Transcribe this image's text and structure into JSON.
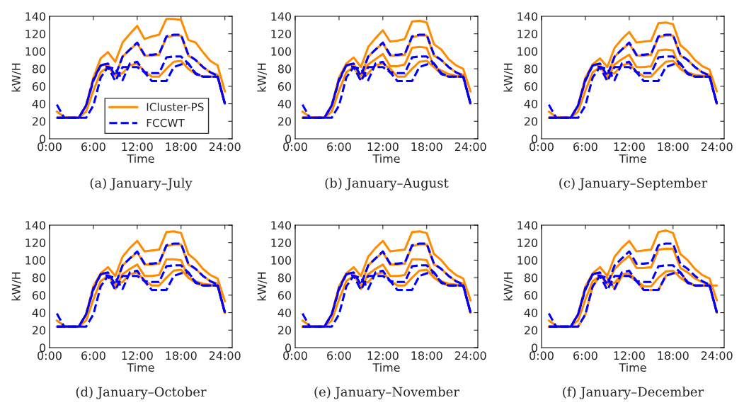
{
  "chart_data": [
    {
      "type": "line",
      "title": "(a) January–July",
      "xlabel": "Time",
      "ylabel": "kW/H",
      "x": [
        1,
        2,
        3,
        4,
        5,
        6,
        7,
        8,
        9,
        10,
        11,
        12,
        13,
        14,
        15,
        16,
        17,
        18,
        19,
        20,
        21,
        22,
        23,
        24
      ],
      "xlim": [
        0,
        25
      ],
      "xticks": [
        {
          "value": 0,
          "label": "0:00"
        },
        {
          "value": 6,
          "label": "6:00"
        },
        {
          "value": 12,
          "label": "12:00"
        },
        {
          "value": 18,
          "label": "18:00"
        },
        {
          "value": 24,
          "label": "24:00"
        }
      ],
      "ylim": [
        0,
        140
      ],
      "yticks": [
        0,
        20,
        40,
        60,
        80,
        100,
        120,
        140
      ],
      "legend": "bottom right",
      "series": [
        {
          "name": "ICluster-PS",
          "color": "#ff8c00",
          "line_style": "solid",
          "values": [
            24,
            24,
            24,
            24,
            38,
            70,
            92,
            99,
            88,
            110,
            120,
            129,
            114,
            117,
            119,
            137,
            137,
            136,
            113,
            110,
            99,
            89,
            84,
            54
          ]
        },
        {
          "color": "#ff8c00",
          "line_style": "solid",
          "values": [
            24,
            24,
            24,
            24,
            38,
            68,
            84,
            85,
            72,
            94,
            102,
            109,
            95,
            95,
            96,
            116,
            118,
            118,
            95,
            90,
            82,
            76,
            73,
            40
          ]
        },
        {
          "color": "#ff8c00",
          "line_style": "solid",
          "values": [
            31,
            25,
            24,
            24,
            31,
            55,
            76,
            82,
            72,
            75,
            84,
            86,
            77,
            71,
            71,
            80,
            88,
            89,
            80,
            74,
            71,
            71,
            71,
            40
          ]
        },
        {
          "name": "FCCWT",
          "color": "#0000ff",
          "line_style": "dashed",
          "values": [
            24,
            24,
            24,
            24,
            38,
            68,
            84,
            86,
            72,
            94,
            102,
            110,
            96,
            96,
            97,
            117,
            119,
            119,
            96,
            90,
            82,
            76,
            72,
            40
          ]
        },
        {
          "color": "#0000ff",
          "line_style": "dashed",
          "values": [
            39,
            24,
            24,
            24,
            38,
            66,
            84,
            82,
            80,
            67,
            86,
            88,
            76,
            75,
            75,
            93,
            94,
            94,
            86,
            74,
            71,
            71,
            71,
            40
          ]
        },
        {
          "color": "#0000ff",
          "line_style": "dashed",
          "values": [
            24,
            24,
            24,
            24,
            24,
            38,
            70,
            82,
            66,
            82,
            82,
            82,
            76,
            66,
            66,
            66,
            82,
            85,
            86,
            75,
            71,
            71,
            71,
            40
          ]
        }
      ]
    },
    {
      "type": "line",
      "title": "(b) January–August",
      "xlabel": "Time",
      "ylabel": "kW/H",
      "x": [
        1,
        2,
        3,
        4,
        5,
        6,
        7,
        8,
        9,
        10,
        11,
        12,
        13,
        14,
        15,
        16,
        17,
        18,
        19,
        20,
        21,
        22,
        23,
        24
      ],
      "xlim": [
        0,
        25
      ],
      "xticks": [
        {
          "value": 0,
          "label": "0:00"
        },
        {
          "value": 6,
          "label": "6:00"
        },
        {
          "value": 12,
          "label": "12:00"
        },
        {
          "value": 18,
          "label": "18:00"
        },
        {
          "value": 24,
          "label": "24:00"
        }
      ],
      "ylim": [
        0,
        140
      ],
      "yticks": [
        0,
        20,
        40,
        60,
        80,
        100,
        120,
        140
      ],
      "series": [
        {
          "color": "#ff8c00",
          "line_style": "solid",
          "values": [
            24,
            24,
            24,
            24,
            38,
            70,
            86,
            93,
            82,
            105,
            115,
            124,
            111,
            112,
            114,
            134,
            135,
            133,
            108,
            102,
            91,
            84,
            80,
            54
          ]
        },
        {
          "color": "#ff8c00",
          "line_style": "solid",
          "values": [
            24,
            24,
            24,
            24,
            38,
            68,
            84,
            85,
            72,
            94,
            102,
            109,
            95,
            95,
            96,
            116,
            118,
            118,
            95,
            90,
            82,
            76,
            73,
            40
          ]
        },
        {
          "color": "#ff8c00",
          "line_style": "solid",
          "values": [
            24,
            24,
            24,
            24,
            38,
            68,
            84,
            85,
            72,
            85,
            91,
            97,
            83,
            83,
            85,
            104,
            105,
            104,
            82,
            78,
            74,
            72,
            71,
            40
          ]
        },
        {
          "color": "#ff8c00",
          "line_style": "solid",
          "values": [
            31,
            25,
            24,
            24,
            31,
            55,
            76,
            82,
            68,
            75,
            84,
            86,
            80,
            71,
            71,
            80,
            88,
            89,
            82,
            74,
            71,
            71,
            71,
            40
          ]
        },
        {
          "color": "#0000ff",
          "line_style": "dashed",
          "values": [
            24,
            24,
            24,
            24,
            38,
            68,
            84,
            86,
            72,
            94,
            102,
            110,
            96,
            96,
            97,
            117,
            119,
            119,
            96,
            90,
            82,
            76,
            72,
            40
          ]
        },
        {
          "color": "#0000ff",
          "line_style": "dashed",
          "values": [
            39,
            24,
            24,
            24,
            38,
            66,
            84,
            82,
            80,
            67,
            86,
            88,
            76,
            75,
            75,
            93,
            94,
            94,
            86,
            74,
            71,
            71,
            71,
            40
          ]
        },
        {
          "color": "#0000ff",
          "line_style": "dashed",
          "values": [
            24,
            24,
            24,
            24,
            24,
            38,
            70,
            82,
            66,
            82,
            82,
            82,
            76,
            66,
            66,
            66,
            82,
            85,
            86,
            75,
            71,
            71,
            71,
            40
          ]
        }
      ]
    },
    {
      "type": "line",
      "title": "(c) January–September",
      "xlabel": "Time",
      "ylabel": "kW/H",
      "x": [
        1,
        2,
        3,
        4,
        5,
        6,
        7,
        8,
        9,
        10,
        11,
        12,
        13,
        14,
        15,
        16,
        17,
        18,
        19,
        20,
        21,
        22,
        23,
        24
      ],
      "xlim": [
        0,
        25
      ],
      "xticks": [
        {
          "value": 0,
          "label": "0:00"
        },
        {
          "value": 6,
          "label": "6:00"
        },
        {
          "value": 12,
          "label": "12:00"
        },
        {
          "value": 18,
          "label": "18:00"
        },
        {
          "value": 24,
          "label": "24:00"
        }
      ],
      "ylim": [
        0,
        140
      ],
      "yticks": [
        0,
        20,
        40,
        60,
        80,
        100,
        120,
        140
      ],
      "series": [
        {
          "color": "#ff8c00",
          "line_style": "solid",
          "values": [
            24,
            24,
            24,
            24,
            38,
            70,
            85,
            92,
            82,
            104,
            114,
            122,
            110,
            111,
            112,
            132,
            133,
            131,
            107,
            100,
            90,
            83,
            79,
            54
          ]
        },
        {
          "color": "#ff8c00",
          "line_style": "solid",
          "values": [
            24,
            24,
            24,
            24,
            38,
            68,
            84,
            85,
            72,
            94,
            102,
            109,
            95,
            95,
            96,
            116,
            118,
            118,
            95,
            90,
            82,
            76,
            73,
            40
          ]
        },
        {
          "color": "#ff8c00",
          "line_style": "solid",
          "values": [
            24,
            24,
            24,
            24,
            38,
            68,
            84,
            85,
            68,
            85,
            91,
            96,
            82,
            82,
            83,
            101,
            102,
            101,
            80,
            76,
            73,
            72,
            71,
            40
          ]
        },
        {
          "color": "#ff8c00",
          "line_style": "solid",
          "values": [
            31,
            25,
            24,
            24,
            31,
            55,
            76,
            82,
            72,
            75,
            84,
            86,
            77,
            71,
            71,
            80,
            88,
            89,
            80,
            74,
            71,
            71,
            71,
            40
          ]
        },
        {
          "color": "#0000ff",
          "line_style": "dashed",
          "values": [
            24,
            24,
            24,
            24,
            38,
            68,
            84,
            86,
            72,
            94,
            102,
            110,
            96,
            96,
            97,
            117,
            119,
            119,
            96,
            90,
            82,
            76,
            72,
            40
          ]
        },
        {
          "color": "#0000ff",
          "line_style": "dashed",
          "values": [
            39,
            24,
            24,
            24,
            38,
            66,
            84,
            82,
            80,
            67,
            86,
            88,
            76,
            75,
            75,
            93,
            94,
            94,
            86,
            74,
            71,
            71,
            71,
            40
          ]
        },
        {
          "color": "#0000ff",
          "line_style": "dashed",
          "values": [
            24,
            24,
            24,
            24,
            24,
            38,
            70,
            82,
            66,
            82,
            82,
            82,
            76,
            66,
            66,
            66,
            82,
            85,
            86,
            75,
            71,
            71,
            71,
            40
          ]
        }
      ]
    },
    {
      "type": "line",
      "title": "(d) January–October",
      "xlabel": "Time",
      "ylabel": "kW/H",
      "x": [
        1,
        2,
        3,
        4,
        5,
        6,
        7,
        8,
        9,
        10,
        11,
        12,
        13,
        14,
        15,
        16,
        17,
        18,
        19,
        20,
        21,
        22,
        23,
        24
      ],
      "xlim": [
        0,
        25
      ],
      "xticks": [
        {
          "value": 0,
          "label": "0:00"
        },
        {
          "value": 6,
          "label": "6:00"
        },
        {
          "value": 12,
          "label": "12:00"
        },
        {
          "value": 18,
          "label": "18:00"
        },
        {
          "value": 24,
          "label": "24:00"
        }
      ],
      "ylim": [
        0,
        140
      ],
      "yticks": [
        0,
        20,
        40,
        60,
        80,
        100,
        120,
        140
      ],
      "series": [
        {
          "color": "#ff8c00",
          "line_style": "solid",
          "values": [
            24,
            24,
            24,
            24,
            38,
            70,
            85,
            92,
            82,
            104,
            114,
            122,
            110,
            111,
            112,
            132,
            133,
            131,
            107,
            100,
            90,
            83,
            79,
            53
          ]
        },
        {
          "color": "#ff8c00",
          "line_style": "solid",
          "values": [
            24,
            24,
            24,
            24,
            38,
            68,
            84,
            85,
            72,
            94,
            102,
            109,
            95,
            95,
            96,
            116,
            118,
            118,
            95,
            90,
            82,
            76,
            73,
            40
          ]
        },
        {
          "color": "#ff8c00",
          "line_style": "solid",
          "values": [
            24,
            24,
            24,
            24,
            38,
            68,
            84,
            85,
            67,
            84,
            90,
            95,
            82,
            82,
            83,
            101,
            101,
            100,
            80,
            76,
            73,
            72,
            71,
            40
          ]
        },
        {
          "color": "#ff8c00",
          "line_style": "solid",
          "values": [
            31,
            25,
            24,
            24,
            31,
            55,
            76,
            82,
            72,
            75,
            84,
            86,
            77,
            71,
            71,
            80,
            88,
            89,
            80,
            74,
            71,
            71,
            71,
            40
          ]
        },
        {
          "color": "#0000ff",
          "line_style": "dashed",
          "values": [
            24,
            24,
            24,
            24,
            38,
            68,
            84,
            86,
            72,
            94,
            102,
            110,
            96,
            96,
            97,
            117,
            119,
            119,
            96,
            90,
            82,
            76,
            72,
            40
          ]
        },
        {
          "color": "#0000ff",
          "line_style": "dashed",
          "values": [
            39,
            24,
            24,
            24,
            38,
            66,
            84,
            82,
            80,
            67,
            86,
            88,
            76,
            75,
            75,
            93,
            94,
            94,
            86,
            74,
            71,
            71,
            71,
            40
          ]
        },
        {
          "color": "#0000ff",
          "line_style": "dashed",
          "values": [
            24,
            24,
            24,
            24,
            24,
            38,
            70,
            82,
            66,
            82,
            82,
            82,
            76,
            66,
            66,
            66,
            82,
            85,
            86,
            75,
            71,
            71,
            71,
            40
          ]
        }
      ]
    },
    {
      "type": "line",
      "title": "(e) January–November",
      "xlabel": "Time",
      "ylabel": "kW/H",
      "x": [
        1,
        2,
        3,
        4,
        5,
        6,
        7,
        8,
        9,
        10,
        11,
        12,
        13,
        14,
        15,
        16,
        17,
        18,
        19,
        20,
        21,
        22,
        23,
        24
      ],
      "xlim": [
        0,
        25
      ],
      "xticks": [
        {
          "value": 0,
          "label": "0:00"
        },
        {
          "value": 6,
          "label": "6:00"
        },
        {
          "value": 12,
          "label": "12:00"
        },
        {
          "value": 18,
          "label": "18:00"
        },
        {
          "value": 24,
          "label": "24:00"
        }
      ],
      "ylim": [
        0,
        140
      ],
      "yticks": [
        0,
        20,
        40,
        60,
        80,
        100,
        120,
        140
      ],
      "series": [
        {
          "color": "#ff8c00",
          "line_style": "solid",
          "values": [
            24,
            24,
            24,
            24,
            38,
            70,
            85,
            92,
            82,
            104,
            114,
            122,
            110,
            111,
            112,
            132,
            133,
            131,
            107,
            100,
            90,
            83,
            79,
            54
          ]
        },
        {
          "color": "#ff8c00",
          "line_style": "solid",
          "values": [
            24,
            24,
            24,
            24,
            38,
            68,
            84,
            85,
            72,
            94,
            102,
            109,
            95,
            95,
            96,
            116,
            118,
            118,
            95,
            90,
            82,
            76,
            73,
            40
          ]
        },
        {
          "color": "#ff8c00",
          "line_style": "solid",
          "values": [
            24,
            24,
            24,
            24,
            38,
            68,
            84,
            85,
            67,
            84,
            90,
            95,
            82,
            82,
            83,
            101,
            101,
            100,
            80,
            76,
            73,
            72,
            71,
            40
          ]
        },
        {
          "color": "#ff8c00",
          "line_style": "solid",
          "values": [
            31,
            25,
            24,
            24,
            31,
            55,
            76,
            82,
            72,
            75,
            84,
            86,
            77,
            71,
            71,
            80,
            88,
            89,
            80,
            74,
            71,
            71,
            71,
            40
          ]
        },
        {
          "color": "#0000ff",
          "line_style": "dashed",
          "values": [
            24,
            24,
            24,
            24,
            38,
            68,
            84,
            86,
            72,
            94,
            102,
            110,
            96,
            96,
            97,
            117,
            119,
            119,
            96,
            90,
            82,
            76,
            72,
            40
          ]
        },
        {
          "color": "#0000ff",
          "line_style": "dashed",
          "values": [
            39,
            24,
            24,
            24,
            38,
            66,
            84,
            82,
            80,
            67,
            86,
            88,
            76,
            75,
            75,
            93,
            94,
            94,
            86,
            74,
            71,
            71,
            71,
            40
          ]
        },
        {
          "color": "#0000ff",
          "line_style": "dashed",
          "values": [
            24,
            24,
            24,
            24,
            24,
            38,
            70,
            82,
            66,
            82,
            82,
            82,
            76,
            66,
            66,
            66,
            82,
            85,
            86,
            75,
            71,
            71,
            71,
            40
          ]
        }
      ]
    },
    {
      "type": "line",
      "title": "(f) January–December",
      "xlabel": "Time",
      "ylabel": "kW/H",
      "x": [
        1,
        2,
        3,
        4,
        5,
        6,
        7,
        8,
        9,
        10,
        11,
        12,
        13,
        14,
        15,
        16,
        17,
        18,
        19,
        20,
        21,
        22,
        23,
        24
      ],
      "xlim": [
        0,
        25
      ],
      "xticks": [
        {
          "value": 0,
          "label": "0:00"
        },
        {
          "value": 6,
          "label": "6:00"
        },
        {
          "value": 12,
          "label": "12:00"
        },
        {
          "value": 18,
          "label": "18:00"
        },
        {
          "value": 24,
          "label": "24:00"
        }
      ],
      "ylim": [
        0,
        140
      ],
      "yticks": [
        0,
        20,
        40,
        60,
        80,
        100,
        120,
        140
      ],
      "series": [
        {
          "color": "#ff8c00",
          "line_style": "solid",
          "values": [
            24,
            24,
            24,
            24,
            38,
            70,
            85,
            92,
            82,
            104,
            114,
            122,
            110,
            111,
            112,
            132,
            134,
            131,
            107,
            100,
            90,
            83,
            79,
            54
          ]
        },
        {
          "color": "#ff8c00",
          "line_style": "solid",
          "values": [
            24,
            24,
            24,
            24,
            38,
            68,
            84,
            85,
            72,
            90,
            98,
            105,
            91,
            91,
            92,
            112,
            113,
            113,
            91,
            86,
            79,
            75,
            72,
            40
          ]
        },
        {
          "color": "#ff8c00",
          "line_style": "solid",
          "values": [
            31,
            25,
            24,
            24,
            31,
            55,
            76,
            82,
            74,
            74,
            84,
            85,
            77,
            70,
            70,
            80,
            87,
            88,
            80,
            74,
            71,
            71,
            71,
            71
          ]
        },
        {
          "color": "#ff8c00",
          "line_style": "solid",
          "values": [
            24,
            24,
            24,
            24,
            24,
            38,
            70,
            82,
            80,
            67,
            82,
            82,
            76,
            66,
            66,
            66,
            82,
            85,
            86,
            75,
            71,
            71,
            71,
            40
          ]
        },
        {
          "color": "#0000ff",
          "line_style": "dashed",
          "values": [
            24,
            24,
            24,
            24,
            38,
            68,
            84,
            86,
            72,
            94,
            102,
            110,
            96,
            96,
            97,
            117,
            119,
            119,
            96,
            90,
            82,
            76,
            72,
            40
          ]
        },
        {
          "color": "#0000ff",
          "line_style": "dashed",
          "values": [
            39,
            24,
            24,
            24,
            38,
            66,
            84,
            82,
            80,
            67,
            86,
            88,
            76,
            75,
            75,
            93,
            94,
            94,
            86,
            74,
            71,
            71,
            71,
            40
          ]
        },
        {
          "color": "#0000ff",
          "line_style": "dashed",
          "values": [
            24,
            24,
            24,
            24,
            24,
            38,
            70,
            82,
            66,
            82,
            82,
            82,
            76,
            66,
            66,
            66,
            82,
            85,
            86,
            75,
            71,
            71,
            71,
            40
          ]
        }
      ]
    }
  ]
}
